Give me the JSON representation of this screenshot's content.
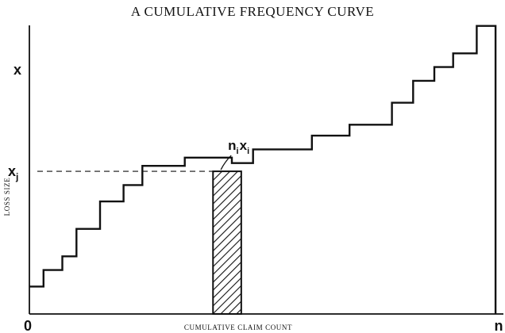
{
  "chart_data": {
    "type": "line",
    "title": "A CUMULATIVE FREQUENCY CURVE",
    "xlabel": "CUMULATIVE CLAIM COUNT",
    "ylabel": "LOSS SIZE",
    "xlim": [
      0,
      100
    ],
    "ylim": [
      0,
      100
    ],
    "x_tick_labels": [
      {
        "text": "0",
        "x": 0
      },
      {
        "text": "n",
        "x": 100
      }
    ],
    "y_tick_labels": [
      {
        "text": "x",
        "y": 89
      },
      {
        "text": "x",
        "sub": "j",
        "y": 52
      }
    ],
    "step_curve": {
      "x": [
        0,
        3,
        3,
        7,
        7,
        10,
        10,
        15,
        15,
        20,
        20,
        24,
        24,
        33,
        33,
        43,
        43,
        47.5,
        47.5,
        60,
        60,
        68,
        68,
        77,
        77,
        81.5,
        81.5,
        86,
        86,
        90,
        90,
        95,
        95,
        99,
        99
      ],
      "y": [
        10,
        10,
        16,
        16,
        21,
        21,
        31,
        31,
        41,
        41,
        47,
        47,
        54,
        54,
        57,
        57,
        55,
        55,
        60,
        60,
        65,
        65,
        69,
        69,
        77,
        77,
        85,
        85,
        90,
        90,
        95,
        95,
        105,
        105,
        0
      ]
    },
    "dashed_reference": {
      "y": 52
    },
    "shaded_strip": {
      "x0": 39,
      "x1": 45,
      "y0": 0,
      "y1": 52,
      "pattern": "diagonal hatch"
    },
    "annotation": {
      "base": "n",
      "base_sub": "i",
      "var": "x",
      "var_sub": "i",
      "points_to": {
        "x": 40.5,
        "y": 52
      }
    },
    "grid": false,
    "legend": "none"
  }
}
